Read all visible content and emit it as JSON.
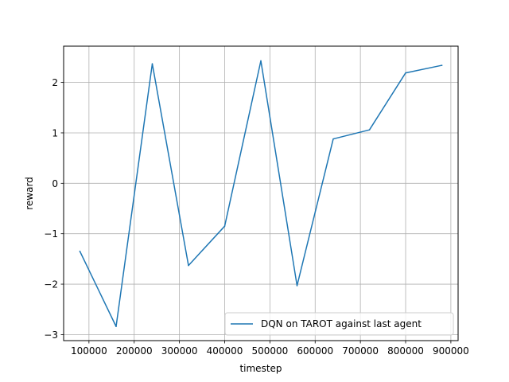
{
  "chart_data": {
    "type": "line",
    "title": "",
    "xlabel": "timestep",
    "ylabel": "reward",
    "xlim": [
      44000,
      916000
    ],
    "ylim": [
      -3.12,
      2.72
    ],
    "xticks": [
      100000,
      200000,
      300000,
      400000,
      500000,
      600000,
      700000,
      800000,
      900000
    ],
    "yticks": [
      -3,
      -2,
      -1,
      0,
      1,
      2
    ],
    "ytick_labels": [
      "−3",
      "−2",
      "−1",
      "0",
      "1",
      "2"
    ],
    "grid": true,
    "legend": "lower-right",
    "series": [
      {
        "name": "DQN on TAROT against last agent",
        "color": "#1f77b4",
        "x": [
          80000,
          160000,
          240000,
          320000,
          400000,
          480000,
          560000,
          640000,
          720000,
          800000,
          880000
        ],
        "y": [
          -1.35,
          -2.84,
          2.37,
          -1.63,
          -0.85,
          2.43,
          -2.03,
          0.88,
          1.06,
          2.19,
          2.34
        ]
      }
    ]
  }
}
